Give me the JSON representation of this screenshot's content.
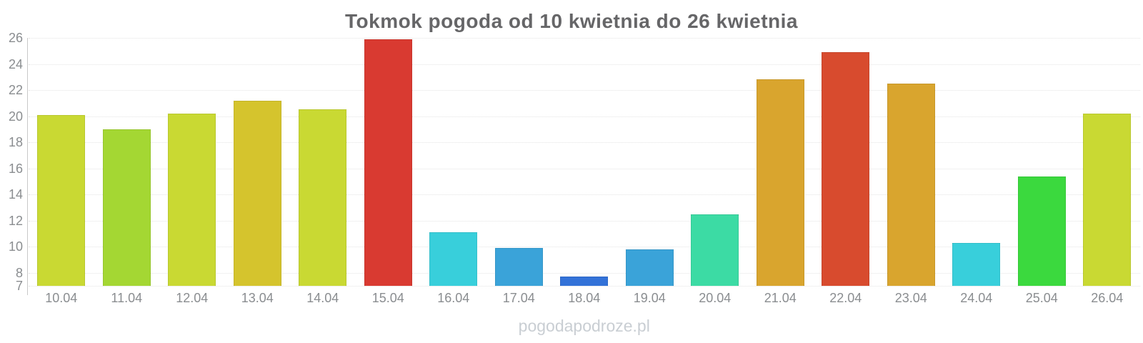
{
  "watermark": "pogodapodroze.pl",
  "colors": {
    "background": "#ffffff",
    "title": "#666668",
    "axis_line": "#c9c9c9",
    "gridline": "#e4e4e4",
    "tick_label": "#8a8d90",
    "watermark": "#c9ced3"
  },
  "chart_data": {
    "type": "bar",
    "title": "Tokmok pogoda od 10 kwietnia do 26 kwietnia",
    "xlabel": "",
    "ylabel": "",
    "categories": [
      "10.04",
      "11.04",
      "12.04",
      "13.04",
      "14.04",
      "15.04",
      "16.04",
      "17.04",
      "18.04",
      "19.04",
      "20.04",
      "21.04",
      "22.04",
      "23.04",
      "24.04",
      "25.04",
      "26.04"
    ],
    "values": [
      20.1,
      19.0,
      20.2,
      21.2,
      20.5,
      25.9,
      11.1,
      9.9,
      7.7,
      9.8,
      12.5,
      22.8,
      24.9,
      22.5,
      10.3,
      15.4,
      20.2
    ],
    "bar_colors": [
      "#c9d933",
      "#a4d733",
      "#c9d933",
      "#d5c42d",
      "#c9d933",
      "#d93a31",
      "#38cfdb",
      "#3aa3d9",
      "#3372d8",
      "#3aa3d9",
      "#3cdba4",
      "#d9a52e",
      "#d84b2e",
      "#d9a52e",
      "#38cfdb",
      "#3bd93e",
      "#c9d933"
    ],
    "ylim": [
      7,
      26
    ],
    "yticks": [
      26,
      24,
      22,
      20,
      18,
      16,
      14,
      12,
      10,
      8,
      7
    ],
    "grid": "horizontal dotted",
    "legend": "none"
  }
}
